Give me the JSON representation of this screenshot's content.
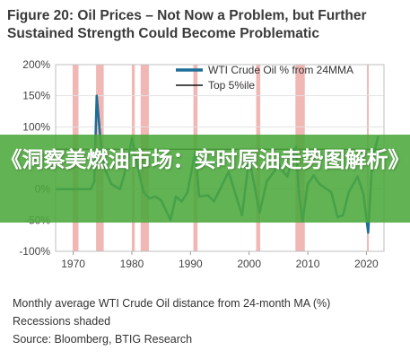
{
  "figure": {
    "title": "Figure 20: Oil Prices – Not Now a Problem, but Further Sustained Strength Could Become Problematic",
    "caption_1": "Monthly average WTI Crude Oil distance from 24-month MA (%)",
    "caption_2": "Recessions shaded",
    "source": "Source: Bloomberg, BTIG Research"
  },
  "banner": {
    "text": "《洞察美燃油市场：实时原油走势图解析》"
  },
  "colors": {
    "wti_line": "#1f6e98",
    "threshold_line": "#111111",
    "recession": "#f1b7b4",
    "banner_bg": "#4ca83c"
  },
  "chart_data": {
    "type": "line",
    "xlim": [
      1967,
      2023
    ],
    "ylim": [
      -100,
      200
    ],
    "x_ticks": [
      "1970",
      "1980",
      "1990",
      "2000",
      "2010",
      "2020"
    ],
    "y_ticks": [
      "200%",
      "150%",
      "100%",
      "50%",
      "0%",
      "-50%",
      "-100%"
    ],
    "legend_position": "top-right",
    "recessions": [
      [
        1969.9,
        1970.9
      ],
      [
        1973.9,
        1975.2
      ],
      [
        1980.0,
        1980.5
      ],
      [
        1981.5,
        1982.9
      ],
      [
        1990.5,
        1991.2
      ],
      [
        2001.2,
        2001.9
      ],
      [
        2007.9,
        2009.5
      ],
      [
        2020.1,
        2020.4
      ]
    ],
    "series": [
      {
        "name": "WTI Crude Oil % from 24MMA",
        "x": [
          1967,
          1973.0,
          1973.6,
          1974.0,
          1974.3,
          1974.7,
          1975.3,
          1976.5,
          1978,
          1979.2,
          1980.0,
          1981.0,
          1982,
          1983,
          1984,
          1985,
          1986.0,
          1986.6,
          1987.5,
          1988.5,
          1989.5,
          1990.8,
          1991.5,
          1993,
          1994,
          1996.5,
          1998.8,
          2000.0,
          2001.8,
          2003,
          2005,
          2006.5,
          2008.0,
          2008.5,
          2009.1,
          2010,
          2011,
          2012,
          2014,
          2015.1,
          2016.0,
          2017,
          2018.5,
          2019.5,
          2020.3,
          2021.0,
          2022.0
        ],
        "values": [
          0,
          0,
          12,
          150,
          118,
          75,
          35,
          8,
          0,
          40,
          82,
          35,
          -5,
          -15,
          -12,
          -18,
          -38,
          -50,
          -12,
          -20,
          -5,
          60,
          -12,
          -10,
          -20,
          28,
          -42,
          50,
          -38,
          12,
          38,
          20,
          68,
          -8,
          -52,
          8,
          22,
          8,
          -5,
          -45,
          -42,
          -5,
          20,
          -8,
          -70,
          45,
          85
        ]
      },
      {
        "name": "Top 5%ile",
        "x": [
          1967,
          2023
        ],
        "values": [
          64,
          64
        ]
      }
    ]
  }
}
